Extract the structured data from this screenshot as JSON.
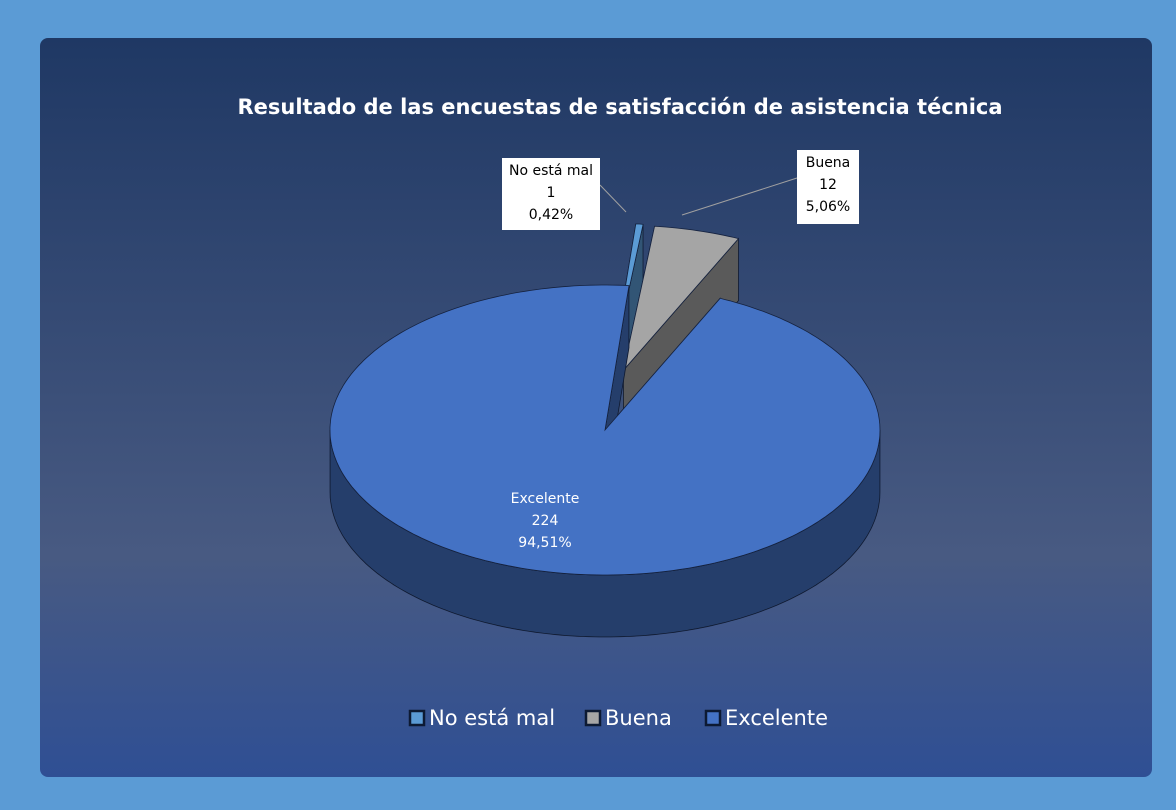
{
  "chart_data": {
    "type": "pie",
    "title": "Resultado de las encuestas de satisfacción de asistencia técnica",
    "categories": [
      "No está mal",
      "Buena",
      "Excelente"
    ],
    "values": [
      1,
      12,
      224
    ],
    "percent_labels": [
      "0,42%",
      "5,06%",
      "94,51%"
    ],
    "colors": [
      "#5b9bd5",
      "#a5a5a5",
      "#4472c4"
    ],
    "exploded": [
      true,
      true,
      false
    ],
    "legend": "bottom"
  }
}
